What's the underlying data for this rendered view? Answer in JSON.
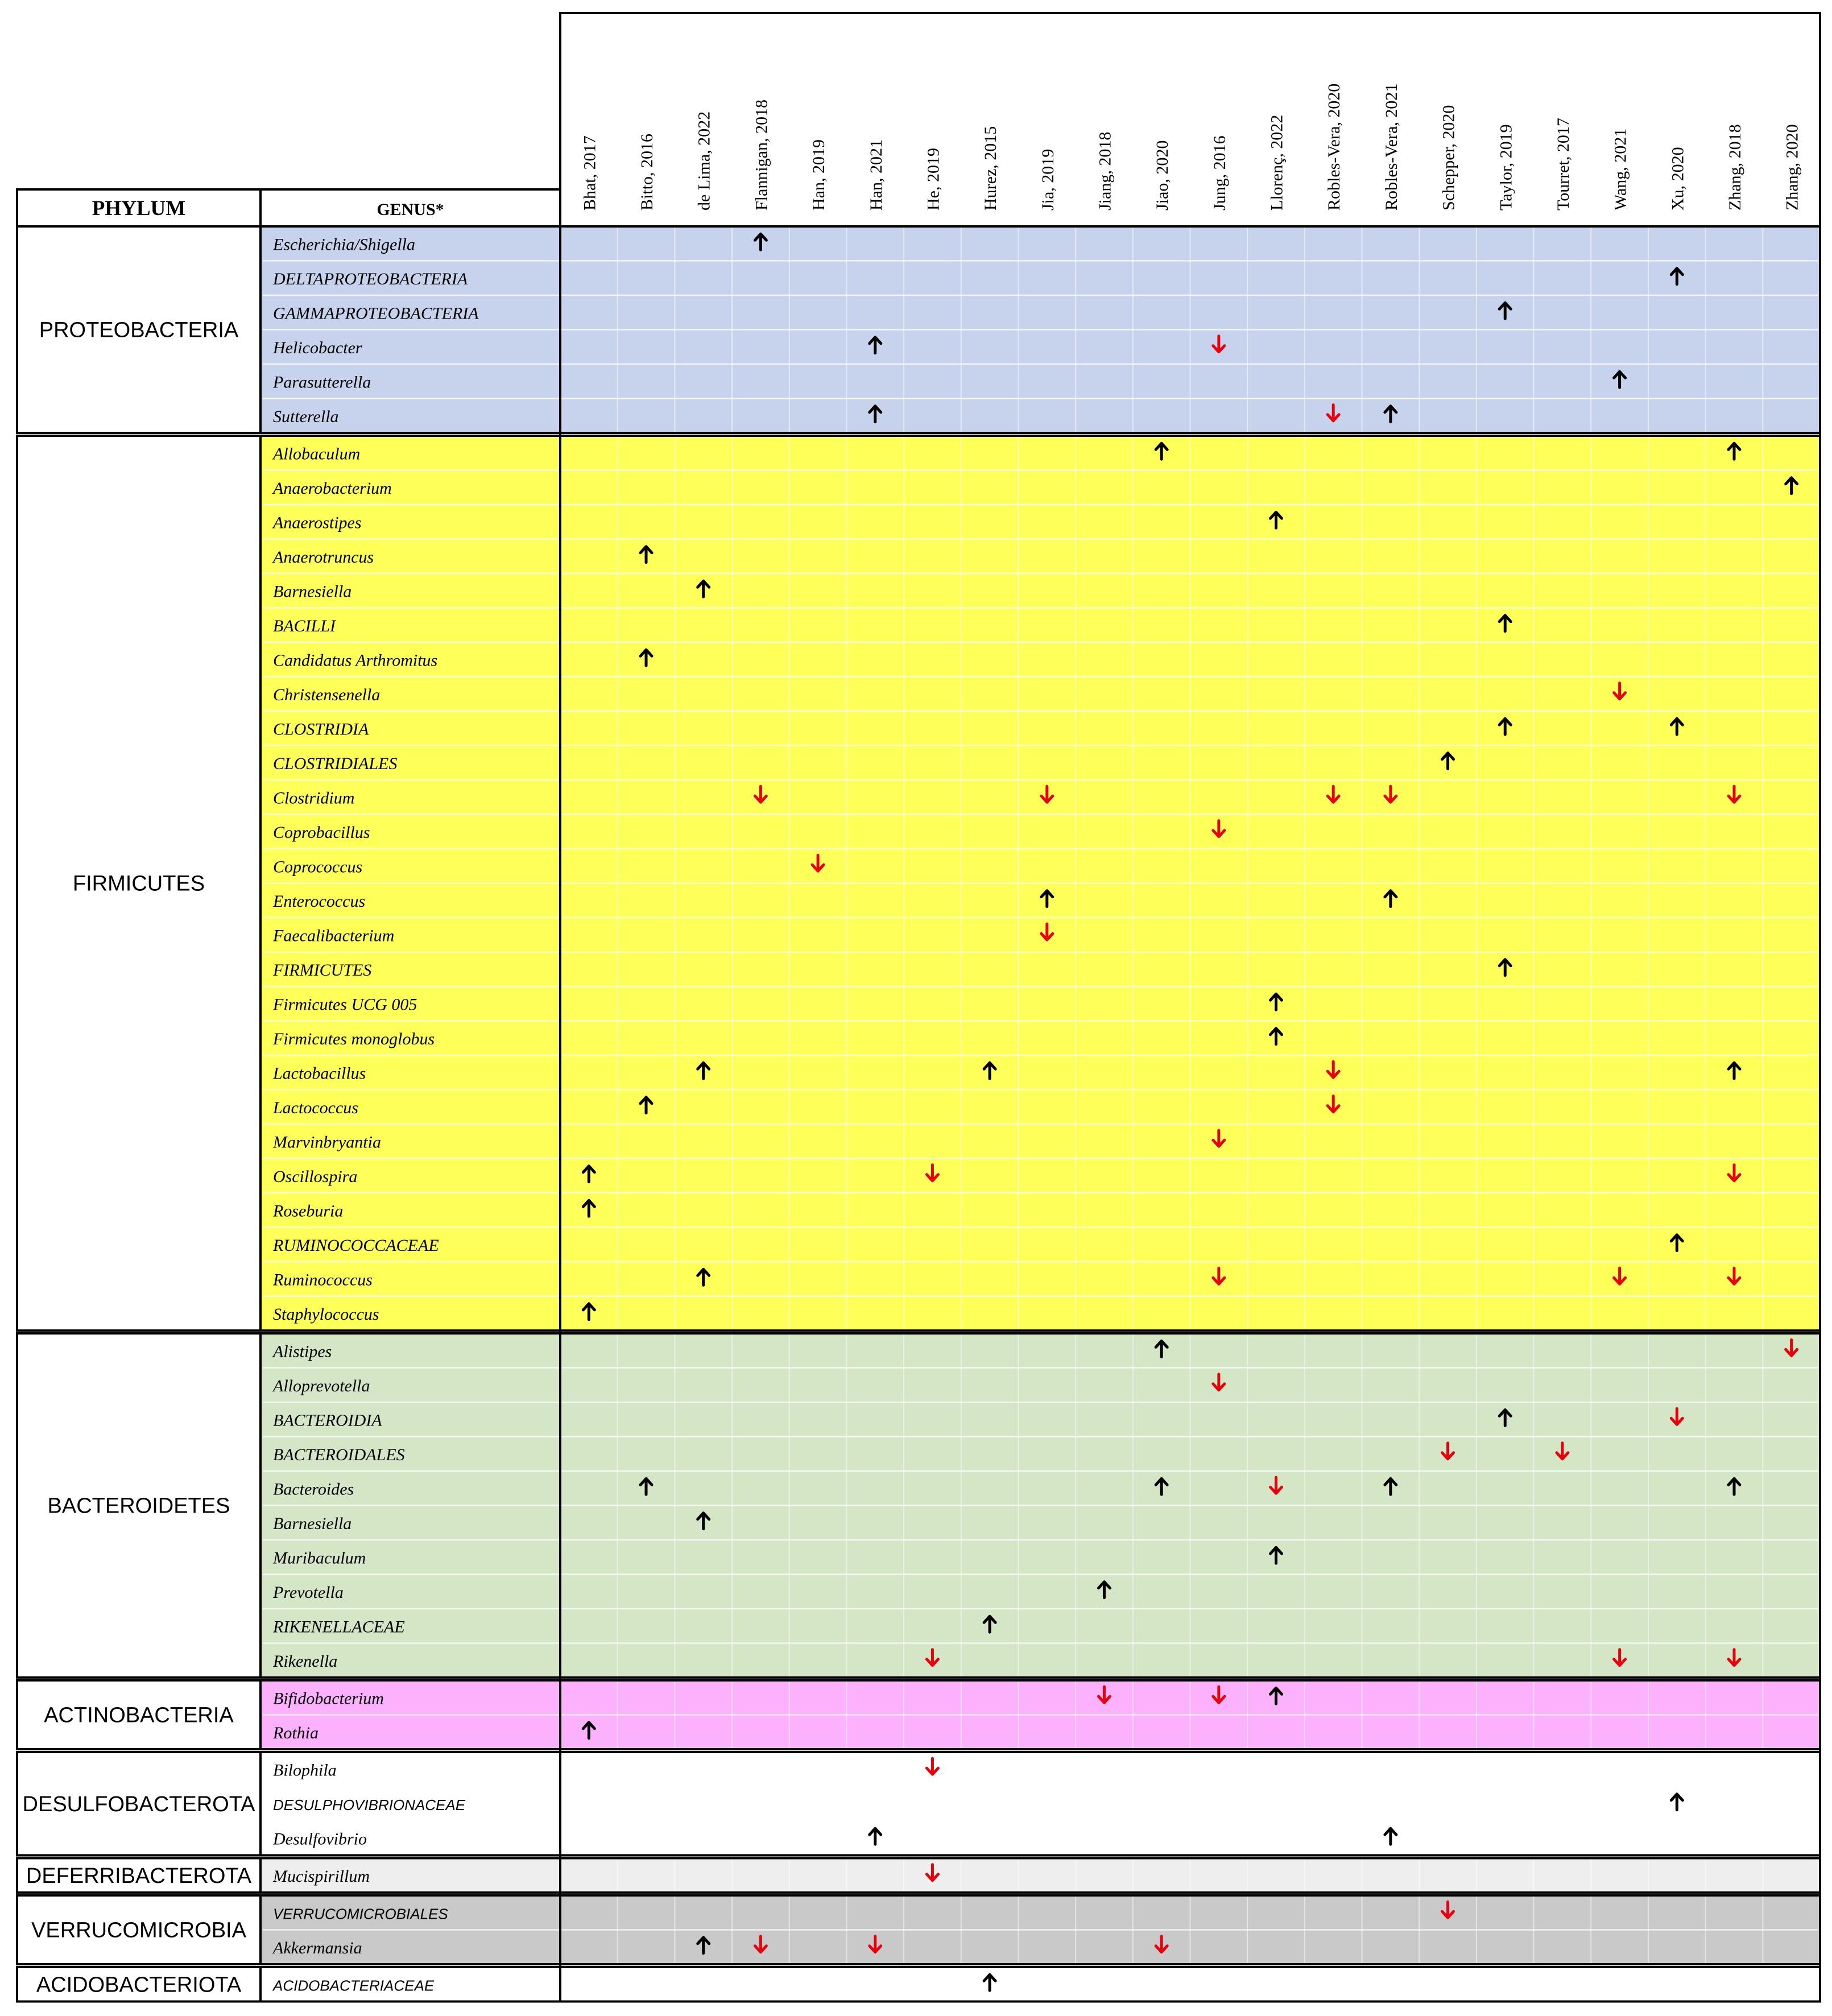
{
  "header": {
    "phylum_label": "PHYLUM",
    "genus_label": "GENUS*"
  },
  "studies": [
    "Bhat, 2017",
    "Bitto, 2016",
    "de Lima, 2022",
    "Flannigan, 2018",
    "Han, 2019",
    "Han, 2021",
    "He, 2019",
    "Hurez, 2015",
    "Jia, 2019",
    "Jiang, 2018",
    "Jiao, 2020",
    "Jung, 2016",
    "Llorenç, 2022",
    "Robles-Vera, 2020",
    "Robles-Vera, 2021",
    "Schepper, 2020",
    "Taylor, 2019",
    "Tourret, 2017",
    "Wang, 2021",
    "Xu, 2020",
    "Zhang, 2018",
    "Zhang, 2020"
  ],
  "colors": {
    "up": "#000000",
    "down": "#e8000b",
    "proteobacteria": "#c7d3ec",
    "firmicutes": "#ffff5a",
    "bacteroidetes": "#d4e6c6",
    "actinobacteria": "#fbb1fb",
    "desulfobacterota": "#ffffff",
    "deferribacterota": "#eeeeee",
    "verrucomicrobia": "#c9c9c9",
    "acidobacteriota": "#ffffff"
  },
  "phyla": [
    {
      "name": "PROTEOBACTERIA",
      "color": "proteobacteria",
      "genera": [
        {
          "name": "Escherichia/Shigella",
          "style": "italic",
          "marks": [
            [
              "Flannigan, 2018",
              "up"
            ]
          ]
        },
        {
          "name": "DELTAPROTEOBACTERIA",
          "style": "caps",
          "marks": [
            [
              "Xu, 2020",
              "up"
            ]
          ]
        },
        {
          "name": "GAMMAPROTEOBACTERIA",
          "style": "caps",
          "marks": [
            [
              "Taylor, 2019",
              "up"
            ]
          ]
        },
        {
          "name": "Helicobacter",
          "style": "italic",
          "marks": [
            [
              "Han, 2021",
              "up"
            ],
            [
              "Jung, 2016",
              "down"
            ]
          ]
        },
        {
          "name": "Parasutterella",
          "style": "italic",
          "marks": [
            [
              "Wang, 2021",
              "up"
            ]
          ]
        },
        {
          "name": "Sutterella",
          "style": "italic",
          "marks": [
            [
              "Han, 2021",
              "up"
            ],
            [
              "Robles-Vera, 2020",
              "down"
            ],
            [
              "Robles-Vera, 2021",
              "up"
            ]
          ]
        }
      ]
    },
    {
      "name": "FIRMICUTES",
      "color": "firmicutes",
      "genera": [
        {
          "name": "Allobaculum",
          "style": "italic",
          "marks": [
            [
              "Jiao, 2020",
              "up"
            ],
            [
              "Zhang, 2018",
              "up"
            ]
          ]
        },
        {
          "name": "Anaerobacterium",
          "style": "italic",
          "marks": [
            [
              "Zhang, 2020",
              "up"
            ]
          ]
        },
        {
          "name": "Anaerostipes",
          "style": "italic",
          "marks": [
            [
              "Llorenç, 2022",
              "up"
            ]
          ]
        },
        {
          "name": "Anaerotruncus",
          "style": "italic",
          "marks": [
            [
              "Bitto, 2016",
              "up"
            ]
          ]
        },
        {
          "name": "Barnesiella",
          "style": "italic",
          "marks": [
            [
              "de Lima, 2022",
              "up"
            ]
          ]
        },
        {
          "name": "BACILLI",
          "style": "caps",
          "marks": [
            [
              "Taylor, 2019",
              "up"
            ]
          ]
        },
        {
          "name": "Candidatus Arthromitus",
          "style": "italic",
          "marks": [
            [
              "Bitto, 2016",
              "up"
            ]
          ]
        },
        {
          "name": "Christensenella",
          "style": "italic",
          "marks": [
            [
              "Wang, 2021",
              "down"
            ]
          ]
        },
        {
          "name": "CLOSTRIDIA",
          "style": "caps",
          "marks": [
            [
              "Taylor, 2019",
              "up"
            ],
            [
              "Xu, 2020",
              "up"
            ]
          ]
        },
        {
          "name": "CLOSTRIDIALES",
          "style": "caps",
          "marks": [
            [
              "Schepper, 2020",
              "up"
            ]
          ]
        },
        {
          "name": "Clostridium",
          "style": "italic",
          "marks": [
            [
              "Flannigan, 2018",
              "down"
            ],
            [
              "Jia, 2019",
              "down"
            ],
            [
              "Robles-Vera, 2020",
              "down"
            ],
            [
              "Robles-Vera, 2021",
              "down"
            ],
            [
              "Zhang, 2018",
              "down"
            ]
          ]
        },
        {
          "name": "Coprobacillus",
          "style": "italic",
          "marks": [
            [
              "Jung, 2016",
              "down"
            ]
          ]
        },
        {
          "name": "Coprococcus",
          "style": "italic",
          "marks": [
            [
              "Han, 2019",
              "down"
            ]
          ]
        },
        {
          "name": "Enterococcus",
          "style": "italic",
          "marks": [
            [
              "Jia, 2019",
              "up"
            ],
            [
              "Robles-Vera, 2021",
              "up"
            ]
          ]
        },
        {
          "name": "Faecalibacterium",
          "style": "italic",
          "marks": [
            [
              "Jia, 2019",
              "down"
            ]
          ]
        },
        {
          "name": "FIRMICUTES",
          "style": "caps",
          "marks": [
            [
              "Taylor, 2019",
              "up"
            ]
          ]
        },
        {
          "name": "Firmicutes UCG 005",
          "style": "italic",
          "marks": [
            [
              "Llorenç, 2022",
              "up"
            ]
          ]
        },
        {
          "name": "Firmicutes monoglobus",
          "style": "italic",
          "marks": [
            [
              "Llorenç, 2022",
              "up"
            ]
          ]
        },
        {
          "name": "Lactobacillus",
          "style": "italic",
          "marks": [
            [
              "de Lima, 2022",
              "up"
            ],
            [
              "Hurez, 2015",
              "up"
            ],
            [
              "Robles-Vera, 2020",
              "down"
            ],
            [
              "Zhang, 2018",
              "up"
            ]
          ]
        },
        {
          "name": "Lactococcus",
          "style": "italic",
          "marks": [
            [
              "Bitto, 2016",
              "up"
            ],
            [
              "Robles-Vera, 2020",
              "down"
            ]
          ]
        },
        {
          "name": "Marvinbryantia",
          "style": "italic",
          "marks": [
            [
              "Jung, 2016",
              "down"
            ]
          ]
        },
        {
          "name": "Oscillospira",
          "style": "italic",
          "marks": [
            [
              "Bhat, 2017",
              "up"
            ],
            [
              "He, 2019",
              "down"
            ],
            [
              "Zhang, 2018",
              "down"
            ]
          ]
        },
        {
          "name": "Roseburia",
          "style": "italic",
          "marks": [
            [
              "Bhat, 2017",
              "up"
            ]
          ]
        },
        {
          "name": "RUMINOCOCCACEAE",
          "style": "caps",
          "marks": [
            [
              "Xu, 2020",
              "up"
            ]
          ]
        },
        {
          "name": "Ruminococcus",
          "style": "italic",
          "marks": [
            [
              "de Lima, 2022",
              "up"
            ],
            [
              "Jung, 2016",
              "down"
            ],
            [
              "Wang, 2021",
              "down"
            ],
            [
              "Zhang, 2018",
              "down"
            ]
          ]
        },
        {
          "name": "Staphylococcus",
          "style": "italic",
          "marks": [
            [
              "Bhat, 2017",
              "up"
            ]
          ]
        }
      ]
    },
    {
      "name": "BACTEROIDETES",
      "color": "bacteroidetes",
      "genera": [
        {
          "name": "Alistipes",
          "style": "italic",
          "marks": [
            [
              "Jiao, 2020",
              "up"
            ],
            [
              "Zhang, 2020",
              "down"
            ]
          ]
        },
        {
          "name": "Alloprevotella",
          "style": "italic",
          "marks": [
            [
              "Jung, 2016",
              "down"
            ]
          ]
        },
        {
          "name": "BACTEROIDIA",
          "style": "caps",
          "marks": [
            [
              "Taylor, 2019",
              "up"
            ],
            [
              "Xu, 2020",
              "down"
            ]
          ]
        },
        {
          "name": "BACTEROIDALES",
          "style": "caps",
          "marks": [
            [
              "Schepper, 2020",
              "down"
            ],
            [
              "Tourret, 2017",
              "down"
            ]
          ]
        },
        {
          "name": "Bacteroides",
          "style": "italic",
          "marks": [
            [
              "Bitto, 2016",
              "up"
            ],
            [
              "Jiao, 2020",
              "up"
            ],
            [
              "Llorenç, 2022",
              "down"
            ],
            [
              "Robles-Vera, 2021",
              "up"
            ],
            [
              "Zhang, 2018",
              "up"
            ]
          ]
        },
        {
          "name": "Barnesiella",
          "style": "italic",
          "marks": [
            [
              "de Lima, 2022",
              "up"
            ]
          ]
        },
        {
          "name": "Muribaculum",
          "style": "italic",
          "marks": [
            [
              "Llorenç, 2022",
              "up"
            ]
          ]
        },
        {
          "name": "Prevotella",
          "style": "italic",
          "marks": [
            [
              "Jiang, 2018",
              "up"
            ]
          ]
        },
        {
          "name": "RIKENELLACEAE",
          "style": "caps",
          "marks": [
            [
              "Hurez, 2015",
              "up"
            ]
          ]
        },
        {
          "name": "Rikenella",
          "style": "italic",
          "marks": [
            [
              "He, 2019",
              "down"
            ],
            [
              "Wang, 2021",
              "down"
            ],
            [
              "Zhang, 2018",
              "down"
            ]
          ]
        }
      ]
    },
    {
      "name": "ACTINOBACTERIA",
      "color": "actinobacteria",
      "genera": [
        {
          "name": "Bifidobacterium",
          "style": "italic",
          "marks": [
            [
              "Jiang, 2018",
              "down"
            ],
            [
              "Jung, 2016",
              "down"
            ],
            [
              "Llorenç, 2022",
              "up"
            ]
          ]
        },
        {
          "name": "Rothia",
          "style": "italic",
          "marks": [
            [
              "Bhat, 2017",
              "up"
            ]
          ]
        }
      ]
    },
    {
      "name": "DESULFOBACTEROTA",
      "color": "desulfobacterota",
      "genera": [
        {
          "name": "Bilophila",
          "style": "italic",
          "marks": [
            [
              "He, 2019",
              "down"
            ]
          ]
        },
        {
          "name": "DESULPHOVIBRIONACEAE",
          "style": "sans",
          "marks": [
            [
              "Xu, 2020",
              "up"
            ]
          ]
        },
        {
          "name": "Desulfovibrio",
          "style": "italic",
          "marks": [
            [
              "Han, 2021",
              "up"
            ],
            [
              "Robles-Vera, 2021",
              "up"
            ]
          ]
        }
      ]
    },
    {
      "name": "DEFERRIBACTEROTA",
      "color": "deferribacterota",
      "genera": [
        {
          "name": "Mucispirillum",
          "style": "italic",
          "marks": [
            [
              "He, 2019",
              "down"
            ]
          ]
        }
      ]
    },
    {
      "name": "VERRUCOMICROBIA",
      "color": "verrucomicrobia",
      "genera": [
        {
          "name": "VERRUCOMICROBIALES",
          "style": "sans",
          "marks": [
            [
              "Schepper, 2020",
              "down"
            ]
          ]
        },
        {
          "name": "Akkermansia",
          "style": "italic",
          "marks": [
            [
              "de Lima, 2022",
              "up"
            ],
            [
              "Flannigan, 2018",
              "down"
            ],
            [
              "Han, 2021",
              "down"
            ],
            [
              "Jiao, 2020",
              "down"
            ]
          ]
        }
      ]
    },
    {
      "name": "ACIDOBACTERIOTA",
      "color": "acidobacteriota",
      "genera": [
        {
          "name": "ACIDOBACTERIACEAE",
          "style": "sans",
          "marks": [
            [
              "Hurez, 2015",
              "up"
            ]
          ]
        }
      ]
    }
  ]
}
